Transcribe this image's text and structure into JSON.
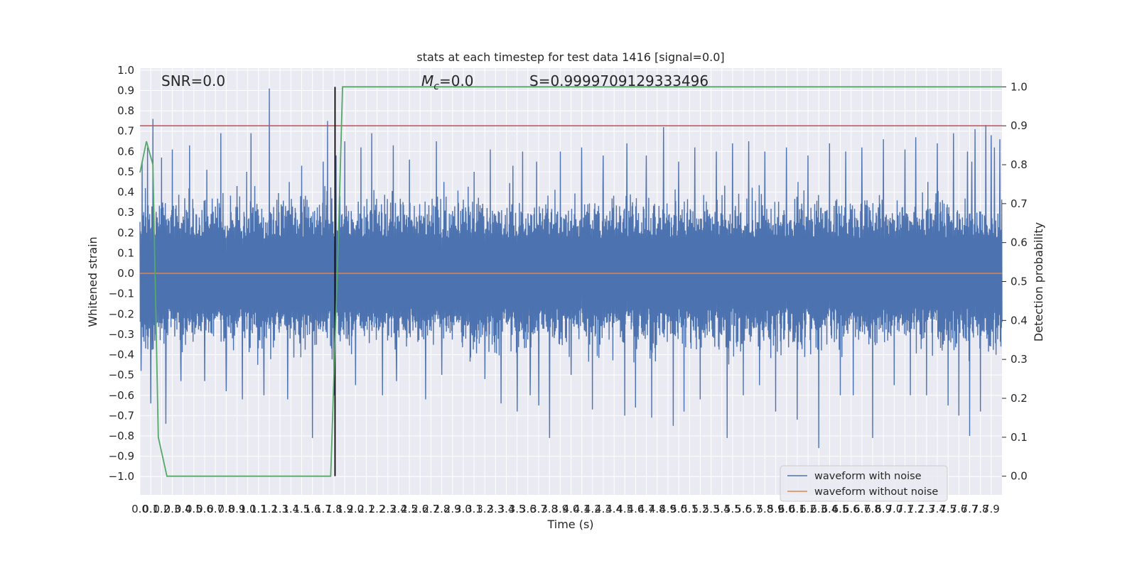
{
  "chart_data": {
    "type": "line",
    "title": "stats at each timestep for test data 1416 [signal=0.0]",
    "xlabel": "Time (s)",
    "ylabel": "Whitened strain",
    "y2label": "Detection probability",
    "xlim": [
      0.0,
      8.0
    ],
    "ylim": [
      -1.09,
      1.01
    ],
    "y2lim": [
      -0.048,
      1.048
    ],
    "grid": true,
    "x_ticks": [
      "0.0",
      "0.1",
      "0.2",
      "0.3",
      "0.4",
      "0.5",
      "0.6",
      "0.7",
      "0.8",
      "0.9",
      "1.0",
      "1.1",
      "1.2",
      "1.3",
      "1.4",
      "1.5",
      "1.6",
      "1.7",
      "1.8",
      "1.9",
      "2.0",
      "2.1",
      "2.2",
      "2.3",
      "2.4",
      "2.5",
      "2.6",
      "2.7",
      "2.8",
      "2.9",
      "3.0",
      "3.1",
      "3.2",
      "3.3",
      "3.4",
      "3.5",
      "3.6",
      "3.7",
      "3.8",
      "3.9",
      "4.0",
      "4.1",
      "4.2",
      "4.3",
      "4.4",
      "4.5",
      "4.6",
      "4.7",
      "4.8",
      "4.9",
      "5.0",
      "5.1",
      "5.2",
      "5.3",
      "5.4",
      "5.5",
      "5.6",
      "5.7",
      "5.8",
      "5.9",
      "6.0",
      "6.1",
      "6.2",
      "6.3",
      "6.4",
      "6.5",
      "6.6",
      "6.7",
      "6.8",
      "6.9",
      "7.0",
      "7.1",
      "7.2",
      "7.3",
      "7.4",
      "7.5",
      "7.6",
      "7.7",
      "7.8",
      "7.9"
    ],
    "y_ticks": [
      "1.0",
      "0.9",
      "0.8",
      "0.7",
      "0.6",
      "0.5",
      "0.4",
      "0.3",
      "0.2",
      "0.1",
      "0.0",
      "−0.1",
      "−0.2",
      "−0.3",
      "−0.4",
      "−0.5",
      "−0.6",
      "−0.7",
      "−0.8",
      "−0.9",
      "−1.0"
    ],
    "y2_ticks": [
      "1.0",
      "0.9",
      "0.8",
      "0.7",
      "0.6",
      "0.5",
      "0.4",
      "0.3",
      "0.2",
      "0.1",
      "0.0"
    ],
    "annotations": {
      "snr": "SNR=0.0",
      "mc_symbol": "M",
      "mc_sub": "c",
      "mc_value": "=0.0",
      "s_text": "S=0.9999709129333496"
    },
    "legend": {
      "location": "lower right",
      "entries": [
        {
          "label": "waveform with noise",
          "color": "#4c72b0"
        },
        {
          "label": "waveform without noise",
          "color": "#dd8452"
        }
      ]
    },
    "series": [
      {
        "name": "waveform with noise",
        "color": "#4c72b0",
        "description": "dense noise band, typical range −0.35 to +0.35",
        "peaks": [
          [
            0.01,
            -0.48
          ],
          [
            0.02,
            0.55
          ],
          [
            0.05,
            0.42
          ],
          [
            0.07,
            0.62
          ],
          [
            0.1,
            -0.64
          ],
          [
            0.12,
            0.76
          ],
          [
            0.2,
            0.57
          ],
          [
            0.24,
            -0.74
          ],
          [
            0.3,
            0.61
          ],
          [
            0.38,
            -0.53
          ],
          [
            0.46,
            0.63
          ],
          [
            0.6,
            -0.53
          ],
          [
            0.62,
            0.51
          ],
          [
            0.75,
            0.69
          ],
          [
            0.8,
            -0.58
          ],
          [
            0.9,
            0.43
          ],
          [
            0.95,
            -0.62
          ],
          [
            0.99,
            0.5
          ],
          [
            1.03,
            0.69
          ],
          [
            1.15,
            -0.6
          ],
          [
            1.2,
            0.48
          ],
          [
            1.2,
            0.91
          ],
          [
            1.37,
            -0.62
          ],
          [
            1.5,
            0.53
          ],
          [
            1.6,
            -0.81
          ],
          [
            1.7,
            0.55
          ],
          [
            1.74,
            0.75
          ],
          [
            1.8,
            -0.6
          ],
          [
            1.82,
            0.58
          ],
          [
            1.9,
            0.65
          ],
          [
            2.0,
            -0.55
          ],
          [
            2.05,
            0.62
          ],
          [
            2.15,
            0.69
          ],
          [
            2.25,
            -0.6
          ],
          [
            2.35,
            0.63
          ],
          [
            2.38,
            -0.53
          ],
          [
            2.5,
            0.56
          ],
          [
            2.65,
            -0.62
          ],
          [
            2.75,
            0.65
          ],
          [
            2.8,
            -0.5
          ],
          [
            3.1,
            0.5
          ],
          [
            3.2,
            -0.52
          ],
          [
            3.25,
            0.61
          ],
          [
            3.35,
            -0.64
          ],
          [
            3.46,
            0.53
          ],
          [
            3.5,
            -0.68
          ],
          [
            3.55,
            0.6
          ],
          [
            3.62,
            -0.6
          ],
          [
            3.68,
            0.55
          ],
          [
            3.7,
            -0.65
          ],
          [
            3.8,
            -0.81
          ],
          [
            3.9,
            0.6
          ],
          [
            4.0,
            -0.5
          ],
          [
            4.1,
            0.62
          ],
          [
            4.2,
            -0.67
          ],
          [
            4.3,
            0.58
          ],
          [
            4.5,
            -0.7
          ],
          [
            4.52,
            0.64
          ],
          [
            4.6,
            -0.66
          ],
          [
            4.7,
            0.58
          ],
          [
            4.75,
            -0.71
          ],
          [
            4.86,
            0.72
          ],
          [
            4.95,
            -0.75
          ],
          [
            5.0,
            0.55
          ],
          [
            5.05,
            -0.68
          ],
          [
            5.15,
            0.62
          ],
          [
            5.2,
            -0.62
          ],
          [
            5.35,
            0.6
          ],
          [
            5.45,
            -0.81
          ],
          [
            5.5,
            0.64
          ],
          [
            5.6,
            -0.6
          ],
          [
            5.65,
            0.65
          ],
          [
            5.75,
            -0.55
          ],
          [
            5.8,
            0.6
          ],
          [
            5.9,
            -0.68
          ],
          [
            6.0,
            0.62
          ],
          [
            6.1,
            -0.72
          ],
          [
            6.2,
            0.58
          ],
          [
            6.3,
            -0.86
          ],
          [
            6.4,
            0.64
          ],
          [
            6.5,
            -0.6
          ],
          [
            6.55,
            0.6
          ],
          [
            6.62,
            -0.6
          ],
          [
            6.7,
            0.62
          ],
          [
            6.8,
            -0.81
          ],
          [
            6.9,
            0.66
          ],
          [
            7.0,
            -0.55
          ],
          [
            7.1,
            0.61
          ],
          [
            7.15,
            -0.6
          ],
          [
            7.2,
            0.67
          ],
          [
            7.3,
            -0.6
          ],
          [
            7.4,
            0.64
          ],
          [
            7.5,
            -0.65
          ],
          [
            7.55,
            0.69
          ],
          [
            7.6,
            -0.7
          ],
          [
            7.68,
            0.6
          ],
          [
            7.7,
            -0.8
          ],
          [
            7.72,
            0.55
          ],
          [
            7.75,
            0.71
          ],
          [
            7.8,
            -0.68
          ],
          [
            7.85,
            0.73
          ],
          [
            7.9,
            0.68
          ],
          [
            7.93,
            0.62
          ],
          [
            7.98,
            0.66
          ]
        ]
      },
      {
        "name": "waveform without noise",
        "color": "#dd8452",
        "x": [
          0.0,
          8.0
        ],
        "y": [
          0.0,
          0.0
        ]
      },
      {
        "name": "detection probability",
        "axis": "right",
        "color": "#55a868",
        "x": [
          0.0,
          0.03,
          0.06,
          0.12,
          0.17,
          0.25,
          0.5,
          1.0,
          1.7,
          1.73,
          1.77,
          1.84,
          1.88,
          8.0
        ],
        "y": [
          0.78,
          0.82,
          0.86,
          0.8,
          0.1,
          0.0,
          0.0,
          0.0,
          0.0,
          0.0,
          0.0,
          0.6,
          1.0,
          1.0
        ]
      }
    ],
    "reference_lines": [
      {
        "orientation": "horizontal",
        "axis": "right",
        "value": 0.9,
        "color": "#c44e52"
      },
      {
        "orientation": "vertical",
        "x": 1.81,
        "y_from": 0.0,
        "y_to": 1.0,
        "axis": "right",
        "color": "#000000"
      }
    ]
  }
}
